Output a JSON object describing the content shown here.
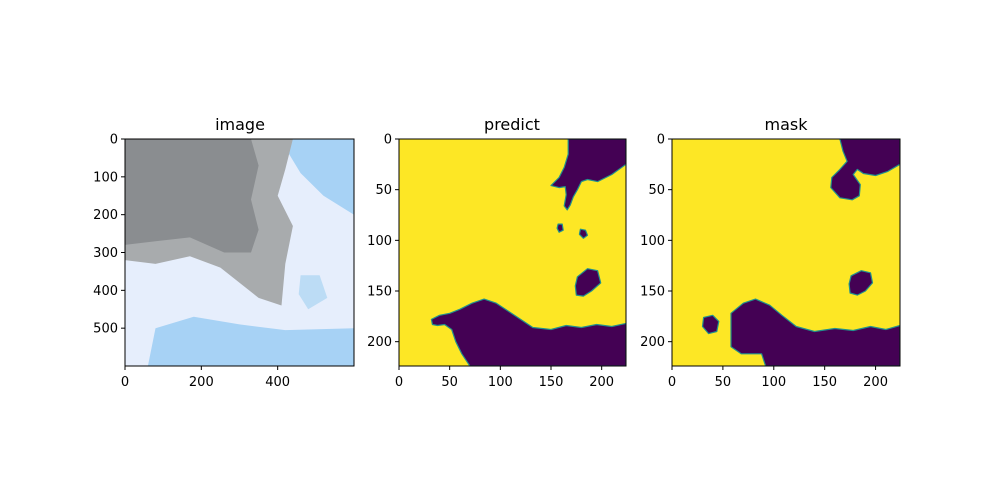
{
  "colors": {
    "foreground": "#fde725",
    "background": "#440154",
    "edge": "#21918c",
    "axes": "#000000",
    "sky_light": "#e6eefc",
    "sky_blue": "#a7d2f5",
    "cloud_dark": "#8a8d90",
    "cloud_mid": "#a8abad"
  },
  "chart_data": [
    {
      "type": "image",
      "title": "image",
      "xlim": [
        0,
        600
      ],
      "ylim": [
        600,
        0
      ],
      "xticks": [
        0,
        200,
        400
      ],
      "yticks": [
        0,
        100,
        200,
        300,
        400,
        500
      ],
      "regions": [
        {
          "name": "sky-light",
          "color": "#e6eefc",
          "points": [
            [
              0,
              0
            ],
            [
              600,
              0
            ],
            [
              600,
              600
            ],
            [
              0,
              600
            ]
          ]
        },
        {
          "name": "sky-blue-top",
          "color": "#a7d2f5",
          "points": [
            [
              400,
              0
            ],
            [
              600,
              0
            ],
            [
              600,
              200
            ],
            [
              520,
              150
            ],
            [
              460,
              90
            ],
            [
              430,
              40
            ]
          ]
        },
        {
          "name": "sky-blue-bottom",
          "color": "#a7d2f5",
          "points": [
            [
              60,
              600
            ],
            [
              80,
              500
            ],
            [
              180,
              470
            ],
            [
              300,
              490
            ],
            [
              420,
              505
            ],
            [
              600,
              500
            ],
            [
              600,
              600
            ]
          ]
        },
        {
          "name": "sky-blue-patch",
          "color": "#bcdcf5",
          "points": [
            [
              460,
              360
            ],
            [
              510,
              360
            ],
            [
              530,
              420
            ],
            [
              480,
              450
            ],
            [
              455,
              410
            ]
          ]
        },
        {
          "name": "cloud-mid",
          "color": "#a8abad",
          "points": [
            [
              0,
              0
            ],
            [
              440,
              0
            ],
            [
              420,
              80
            ],
            [
              400,
              150
            ],
            [
              440,
              230
            ],
            [
              420,
              330
            ],
            [
              410,
              440
            ],
            [
              350,
              420
            ],
            [
              250,
              340
            ],
            [
              170,
              310
            ],
            [
              80,
              330
            ],
            [
              0,
              320
            ]
          ]
        },
        {
          "name": "cloud-dark",
          "color": "#8a8d90",
          "points": [
            [
              0,
              0
            ],
            [
              330,
              0
            ],
            [
              350,
              70
            ],
            [
              330,
              160
            ],
            [
              350,
              240
            ],
            [
              330,
              300
            ],
            [
              260,
              300
            ],
            [
              170,
              260
            ],
            [
              80,
              270
            ],
            [
              0,
              280
            ]
          ]
        }
      ]
    },
    {
      "type": "heatmap",
      "title": "predict",
      "xlim": [
        0,
        224
      ],
      "ylim": [
        224,
        0
      ],
      "xticks": [
        0,
        50,
        100,
        150,
        200
      ],
      "yticks": [
        0,
        50,
        100,
        150,
        200
      ],
      "background_value": 1,
      "regions": [
        {
          "name": "top-right-blob",
          "value": 0,
          "points": [
            [
              167,
              0
            ],
            [
              224,
              0
            ],
            [
              224,
              25
            ],
            [
              210,
              35
            ],
            [
              196,
              42
            ],
            [
              186,
              40
            ],
            [
              180,
              42
            ],
            [
              176,
              50
            ],
            [
              172,
              57
            ],
            [
              169,
              65
            ],
            [
              166,
              70
            ],
            [
              163,
              66
            ],
            [
              165,
              55
            ],
            [
              164,
              47
            ],
            [
              158,
              48
            ],
            [
              150,
              46
            ],
            [
              158,
              38
            ],
            [
              163,
              28
            ],
            [
              167,
              15
            ]
          ]
        },
        {
          "name": "small-dot-1",
          "value": 0,
          "points": [
            [
              157,
              84
            ],
            [
              161,
              84
            ],
            [
              162,
              90
            ],
            [
              158,
              92
            ],
            [
              156,
              88
            ]
          ]
        },
        {
          "name": "small-dot-2",
          "value": 0,
          "points": [
            [
              179,
              89
            ],
            [
              184,
              90
            ],
            [
              186,
              95
            ],
            [
              182,
              98
            ],
            [
              178,
              94
            ]
          ]
        },
        {
          "name": "mid-right-blob",
          "value": 0,
          "points": [
            [
              176,
              136
            ],
            [
              186,
              128
            ],
            [
              196,
              130
            ],
            [
              199,
              142
            ],
            [
              190,
              150
            ],
            [
              182,
              155
            ],
            [
              175,
              154
            ],
            [
              174,
              145
            ]
          ]
        },
        {
          "name": "bottom-mass",
          "value": 0,
          "points": [
            [
              32,
              178
            ],
            [
              40,
              174
            ],
            [
              50,
              172
            ],
            [
              60,
              168
            ],
            [
              72,
              162
            ],
            [
              84,
              158
            ],
            [
              96,
              162
            ],
            [
              108,
              170
            ],
            [
              120,
              178
            ],
            [
              132,
              186
            ],
            [
              150,
              188
            ],
            [
              165,
              184
            ],
            [
              180,
              186
            ],
            [
              195,
              183
            ],
            [
              210,
              185
            ],
            [
              224,
              182
            ],
            [
              224,
              224
            ],
            [
              70,
              224
            ],
            [
              62,
              212
            ],
            [
              56,
              200
            ],
            [
              52,
              188
            ],
            [
              45,
              183
            ],
            [
              38,
              184
            ],
            [
              33,
              183
            ]
          ]
        }
      ]
    },
    {
      "type": "heatmap",
      "title": "mask",
      "xlim": [
        0,
        224
      ],
      "ylim": [
        224,
        0
      ],
      "xticks": [
        0,
        50,
        100,
        150,
        200
      ],
      "yticks": [
        0,
        50,
        100,
        150,
        200
      ],
      "background_value": 1,
      "regions": [
        {
          "name": "top-right-blob",
          "value": 0,
          "points": [
            [
              165,
              0
            ],
            [
              224,
              0
            ],
            [
              224,
              25
            ],
            [
              212,
              32
            ],
            [
              200,
              36
            ],
            [
              188,
              34
            ],
            [
              182,
              30
            ],
            [
              178,
              35
            ],
            [
              185,
              45
            ],
            [
              184,
              56
            ],
            [
              177,
              60
            ],
            [
              165,
              58
            ],
            [
              156,
              48
            ],
            [
              157,
              38
            ],
            [
              165,
              30
            ],
            [
              172,
              22
            ],
            [
              168,
              12
            ]
          ]
        },
        {
          "name": "mid-right-blob",
          "value": 0,
          "points": [
            [
              176,
              135
            ],
            [
              186,
              130
            ],
            [
              195,
              132
            ],
            [
              197,
              142
            ],
            [
              190,
              150
            ],
            [
              182,
              154
            ],
            [
              175,
              152
            ],
            [
              174,
              143
            ]
          ]
        },
        {
          "name": "small-left-blob",
          "value": 0,
          "points": [
            [
              31,
              176
            ],
            [
              40,
              174
            ],
            [
              46,
              180
            ],
            [
              44,
              190
            ],
            [
              36,
              192
            ],
            [
              30,
              185
            ]
          ]
        },
        {
          "name": "bottom-mass",
          "value": 0,
          "points": [
            [
              58,
              172
            ],
            [
              70,
              162
            ],
            [
              82,
              158
            ],
            [
              96,
              164
            ],
            [
              108,
              174
            ],
            [
              122,
              185
            ],
            [
              140,
              190
            ],
            [
              160,
              187
            ],
            [
              178,
              189
            ],
            [
              195,
              185
            ],
            [
              210,
              188
            ],
            [
              224,
              184
            ],
            [
              224,
              224
            ],
            [
              92,
              224
            ],
            [
              88,
              212
            ],
            [
              80,
              212
            ],
            [
              68,
              212
            ],
            [
              58,
              205
            ]
          ]
        }
      ]
    }
  ]
}
